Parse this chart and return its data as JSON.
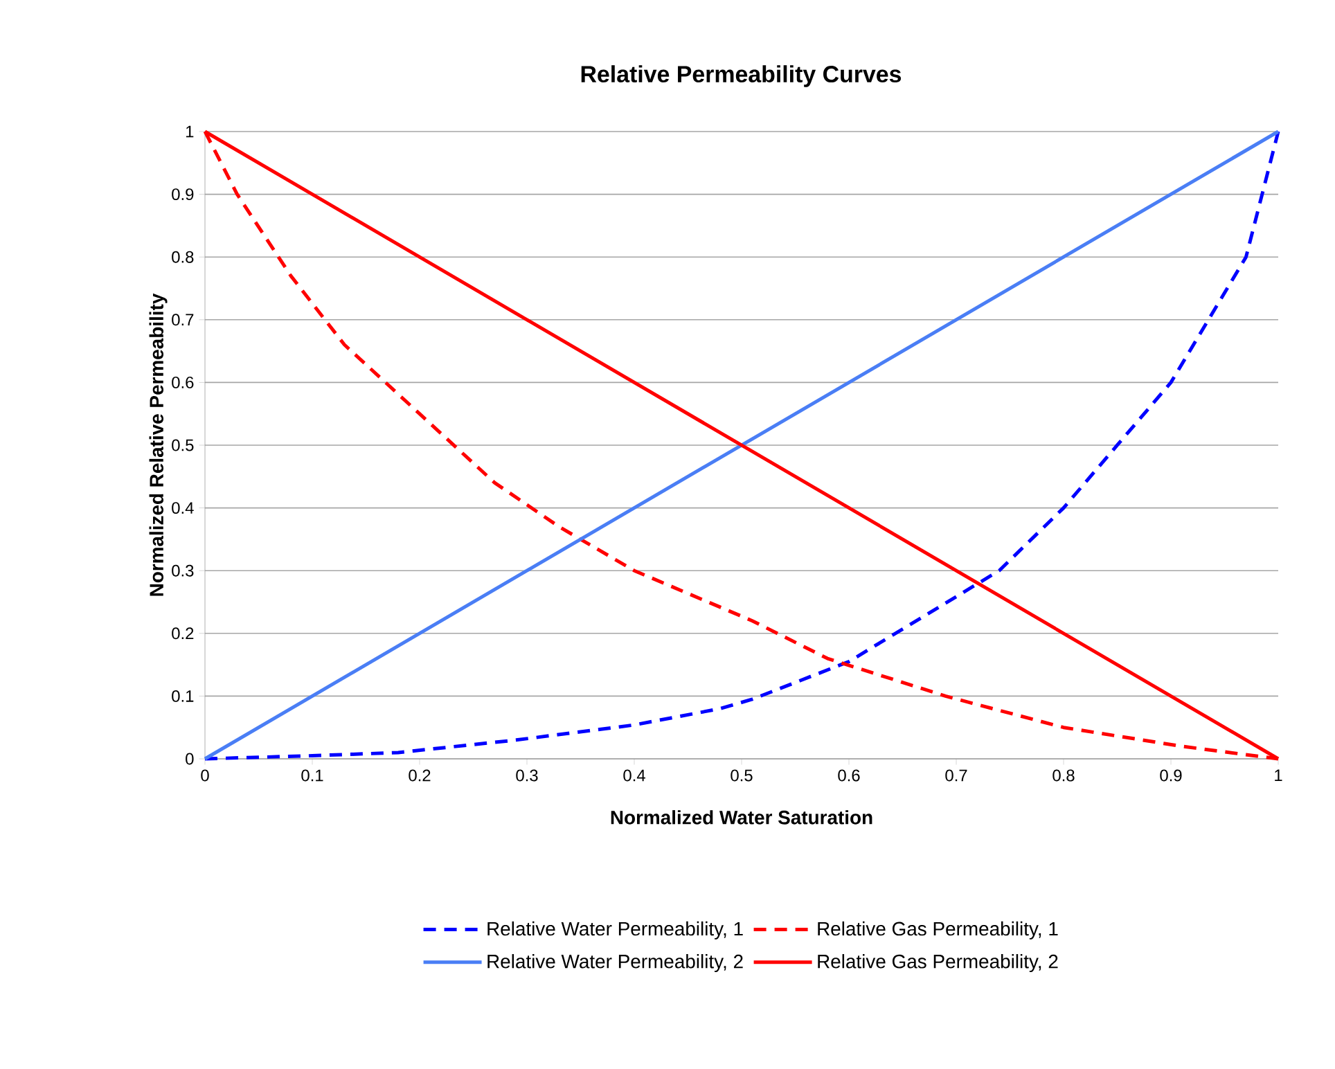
{
  "chart_data": {
    "type": "line",
    "title": "Relative Permeability Curves",
    "xlabel": "Normalized Water Saturation",
    "ylabel": "Normalized Relative Permeability",
    "xlim": [
      0,
      1
    ],
    "ylim": [
      0,
      1
    ],
    "xticks": [
      0,
      0.1,
      0.2,
      0.3,
      0.4,
      0.5,
      0.6,
      0.7,
      0.8,
      0.9,
      1
    ],
    "yticks": [
      0,
      0.1,
      0.2,
      0.3,
      0.4,
      0.5,
      0.6,
      0.7,
      0.8,
      0.9,
      1
    ],
    "grid": "y",
    "legend": "bottom",
    "series": [
      {
        "name": "Relative Water Permeability, 1",
        "color": "#0000ff",
        "line_style": "dashed",
        "x": [
          0,
          0.1,
          0.18,
          0.29,
          0.4,
          0.48,
          0.51,
          0.6,
          0.74,
          0.8,
          0.85,
          0.9,
          0.97,
          1
        ],
        "values": [
          0,
          0.005,
          0.01,
          0.03,
          0.054,
          0.08,
          0.095,
          0.155,
          0.3,
          0.4,
          0.5,
          0.6,
          0.8,
          1
        ]
      },
      {
        "name": "Relative Gas Permeability, 1",
        "color": "#ff0000",
        "line_style": "dashed",
        "x": [
          0,
          0.03,
          0.08,
          0.13,
          0.2,
          0.27,
          0.33,
          0.4,
          0.51,
          0.58,
          0.69,
          0.8,
          0.91,
          1
        ],
        "values": [
          1,
          0.9,
          0.77,
          0.66,
          0.55,
          0.44,
          0.37,
          0.3,
          0.22,
          0.16,
          0.1,
          0.05,
          0.02,
          0
        ]
      },
      {
        "name": "Relative Water Permeability, 2",
        "color": "#4a7ef5",
        "line_style": "solid",
        "x": [
          0,
          1
        ],
        "values": [
          0,
          1
        ]
      },
      {
        "name": "Relative Gas Permeability, 2",
        "color": "#ff0000",
        "line_style": "solid",
        "x": [
          0,
          1
        ],
        "values": [
          1,
          0
        ]
      }
    ]
  }
}
